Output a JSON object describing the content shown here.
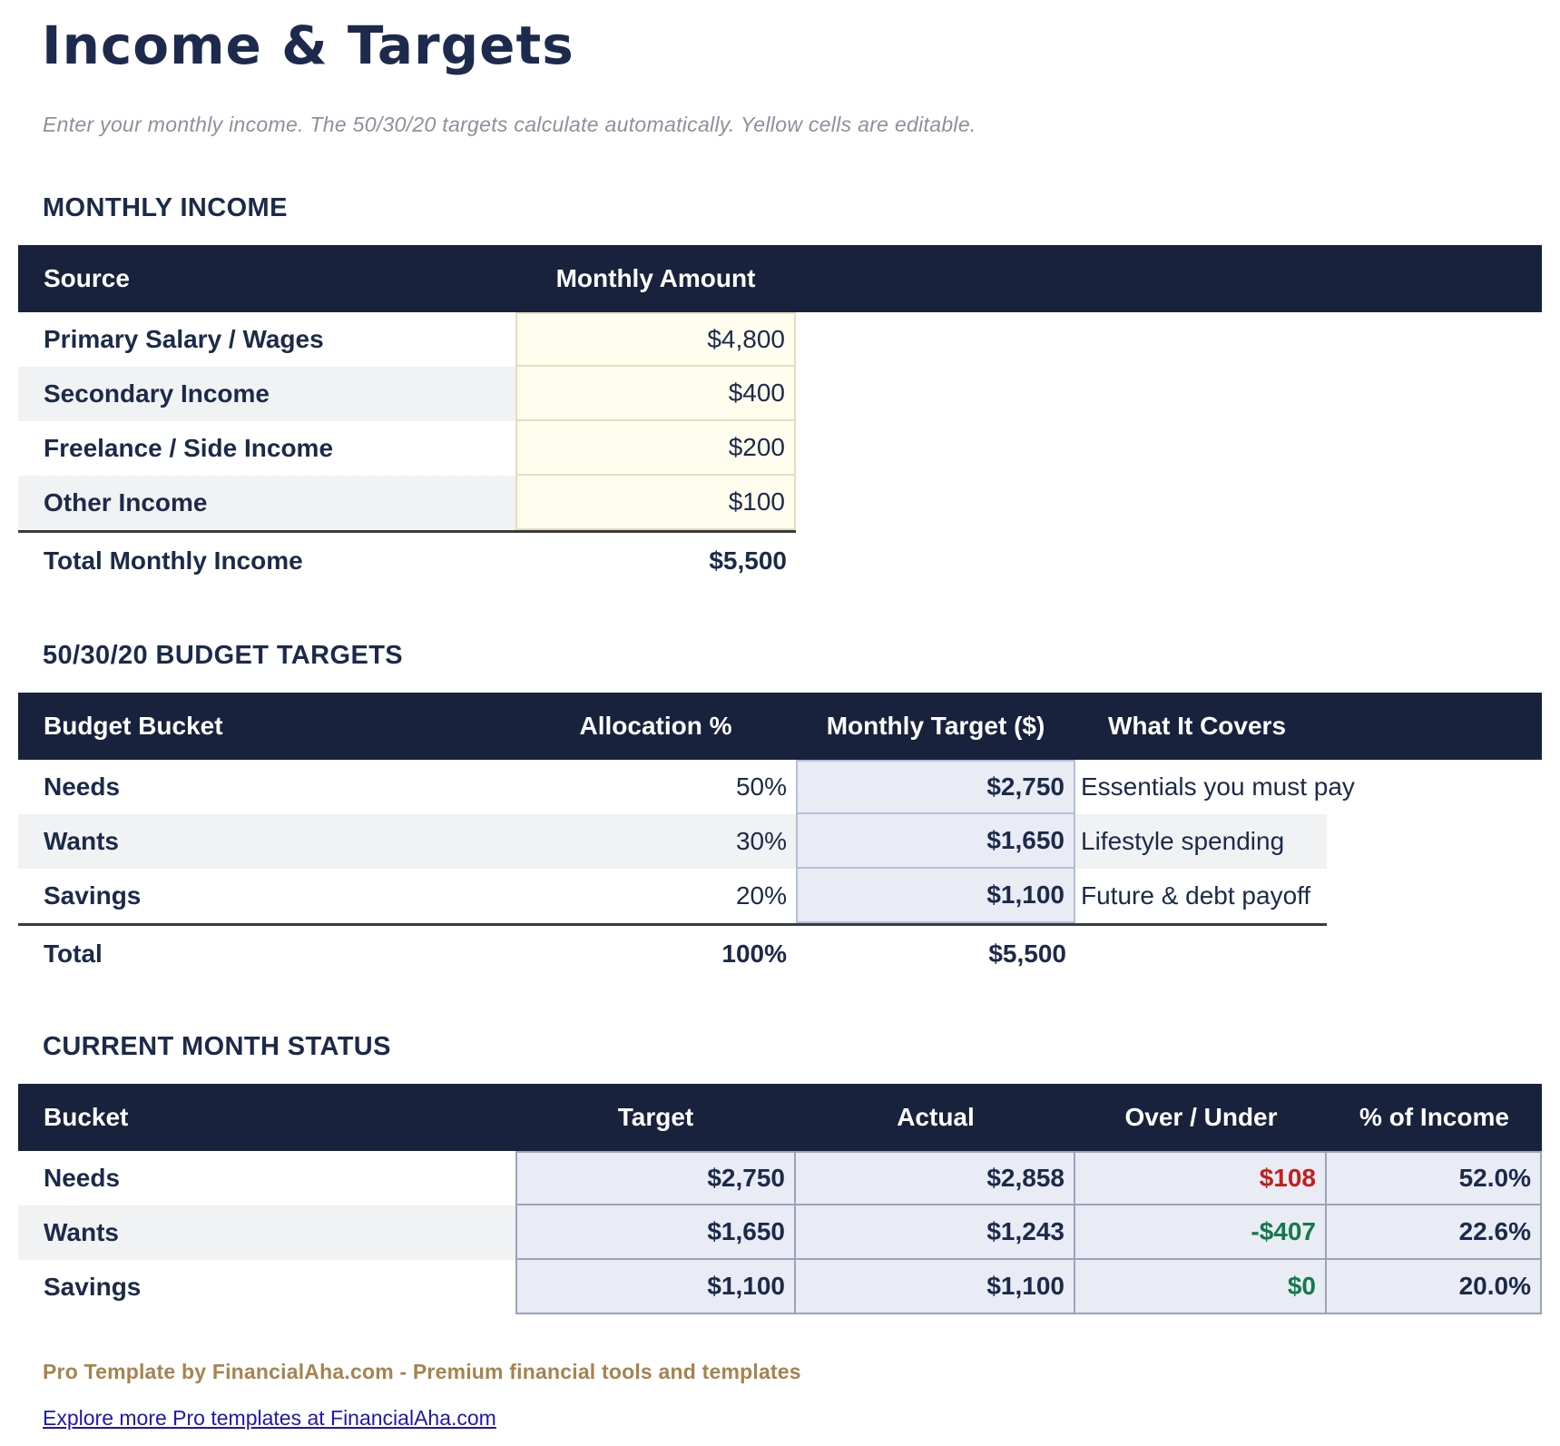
{
  "page": {
    "title": "Income & Targets",
    "subtitle": "Enter your monthly income. The 50/30/20 targets calculate automatically. Yellow cells are editable."
  },
  "colors": {
    "header_navy": "#18223C",
    "text_navy": "#1C2A4A",
    "editable_cell_yellow": "#FFFDEE",
    "editable_cell_border": "#E6DDBC",
    "computed_cell_lavender": "#E9EBF5",
    "over_red": "#C1201A",
    "under_green": "#13794A",
    "footer_gold": "#A6834F",
    "link_blue": "#1F17AE"
  },
  "monthly_income": {
    "heading": "MONTHLY INCOME",
    "columns": [
      "Source",
      "Monthly Amount"
    ],
    "rows": [
      {
        "source": "Primary Salary / Wages",
        "amount": "$4,800"
      },
      {
        "source": "Secondary Income",
        "amount": "$400"
      },
      {
        "source": "Freelance / Side Income",
        "amount": "$200"
      },
      {
        "source": "Other Income",
        "amount": "$100"
      }
    ],
    "total": {
      "label": "Total Monthly Income",
      "amount": "$5,500"
    }
  },
  "budget_targets": {
    "heading": "50/30/20 BUDGET TARGETS",
    "columns": [
      "Budget Bucket",
      "Allocation %",
      "Monthly Target ($)",
      "What It Covers"
    ],
    "rows": [
      {
        "bucket": "Needs",
        "allocation": "50%",
        "target": "$2,750",
        "covers": "Essentials you must pay"
      },
      {
        "bucket": "Wants",
        "allocation": "30%",
        "target": "$1,650",
        "covers": "Lifestyle spending"
      },
      {
        "bucket": "Savings",
        "allocation": "20%",
        "target": "$1,100",
        "covers": "Future & debt payoff"
      }
    ],
    "total": {
      "label": "Total",
      "allocation": "100%",
      "target": "$5,500"
    }
  },
  "current_month": {
    "heading": "CURRENT MONTH STATUS",
    "columns": [
      "Bucket",
      "Target",
      "Actual",
      "Over / Under",
      "% of Income"
    ],
    "rows": [
      {
        "bucket": "Needs",
        "target": "$2,750",
        "actual": "$2,858",
        "over_under": "$108",
        "pct_income": "52.0%"
      },
      {
        "bucket": "Wants",
        "target": "$1,650",
        "actual": "$1,243",
        "over_under": "-$407",
        "pct_income": "22.6%"
      },
      {
        "bucket": "Savings",
        "target": "$1,100",
        "actual": "$1,100",
        "over_under": "$0",
        "pct_income": "20.0%"
      }
    ]
  },
  "footer": {
    "credit": "Pro Template by FinancialAha.com - Premium financial tools and templates",
    "link": "Explore more Pro templates at FinancialAha.com"
  }
}
